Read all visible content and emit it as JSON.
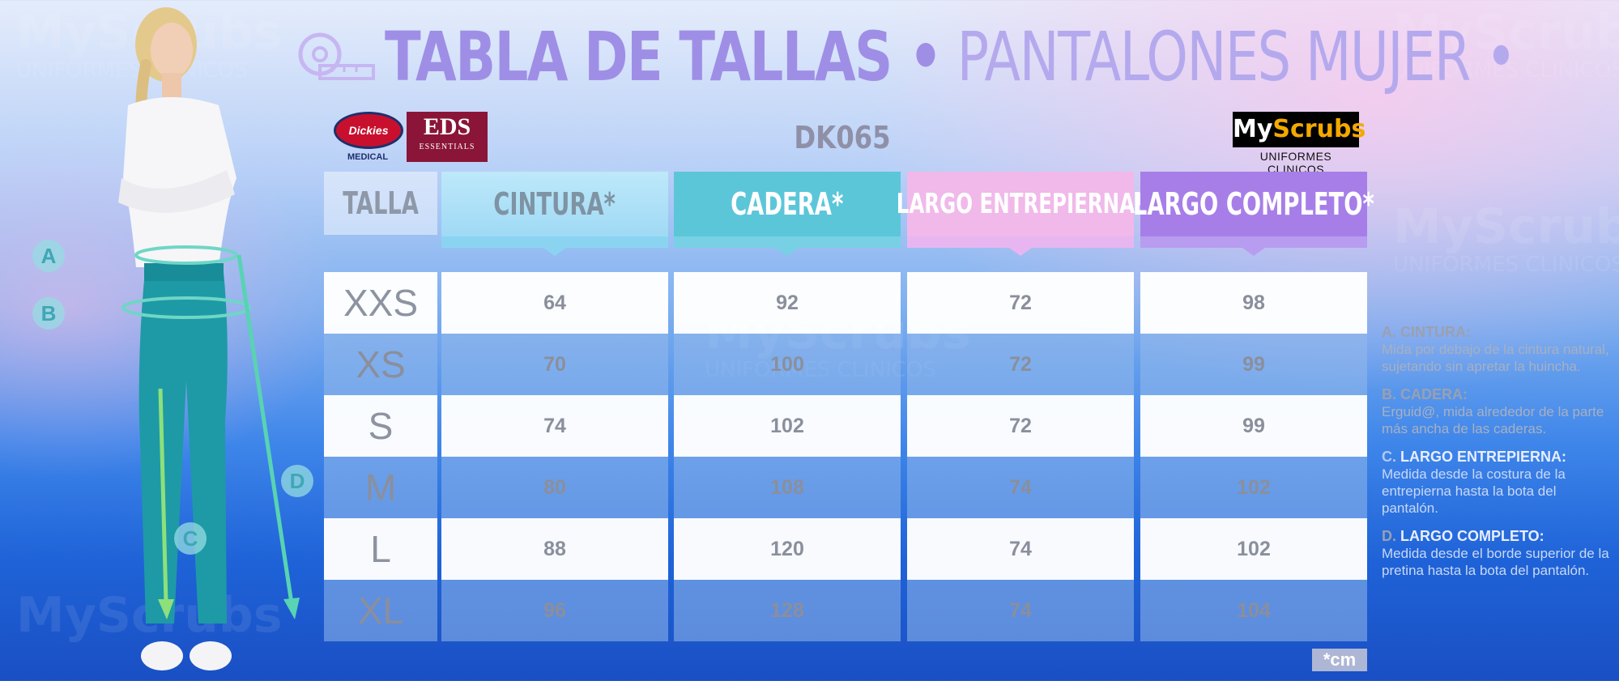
{
  "title": {
    "bold": "TABLA DE TALLAS •",
    "light": "PANTALONES MUJER •"
  },
  "logos": {
    "dickies": "Dickies",
    "dickies_sub": "MEDICAL",
    "eds": "EDS",
    "eds_sub": "ESSENTIALS",
    "myscrubs_my": "My",
    "myscrubs_scrubs": "Scrubs",
    "myscrubs_sub": "UNIFORMES CLINICOS"
  },
  "model_code": "DK065",
  "watermark": {
    "brand": "MyScrubs",
    "tagline": "UNIFORMES CLINICOS"
  },
  "table": {
    "headers": {
      "talla": "TALLA",
      "cintura": "CINTURA*",
      "cadera": "CADERA*",
      "largo_entrepierna": "LARGO ENTREPIERNA*",
      "largo_completo": "LARGO COMPLETO*"
    },
    "rows": [
      {
        "size": "XXS",
        "cintura": "64",
        "cadera": "92",
        "entrepierna": "72",
        "completo": "98"
      },
      {
        "size": "XS",
        "cintura": "70",
        "cadera": "100",
        "entrepierna": "72",
        "completo": "99"
      },
      {
        "size": "S",
        "cintura": "74",
        "cadera": "102",
        "entrepierna": "72",
        "completo": "99"
      },
      {
        "size": "M",
        "cintura": "80",
        "cadera": "108",
        "entrepierna": "74",
        "completo": "102"
      },
      {
        "size": "L",
        "cintura": "88",
        "cadera": "120",
        "entrepierna": "74",
        "completo": "102"
      },
      {
        "size": "XL",
        "cintura": "96",
        "cadera": "128",
        "entrepierna": "74",
        "completo": "104"
      }
    ],
    "unit": "*cm"
  },
  "markers": [
    "A",
    "B",
    "C",
    "D"
  ],
  "notes": [
    {
      "letter": "A.",
      "title": "CINTURA:",
      "text": "Mida por debajo de la cintura natural, sujetando sin apretar la huincha."
    },
    {
      "letter": "B.",
      "title": "CADERA:",
      "text": "Erguid@, mida alrededor de la parte más ancha de las caderas."
    },
    {
      "letter": "C.",
      "title": "LARGO ENTREPIERNA:",
      "text": "Medida desde la costura de la entrepierna hasta la bota del pantalón."
    },
    {
      "letter": "D.",
      "title": "LARGO COMPLETO:",
      "text": "Medida desde el borde superior de la pretina hasta la bota del pantalón."
    }
  ],
  "colors": {
    "title": "#a99ae8",
    "cadera_header": "#5cc6d9",
    "entrepierna_header": "#f0b9ea",
    "completo_header": "#a77ee8",
    "pants": "#1e9aa6"
  }
}
